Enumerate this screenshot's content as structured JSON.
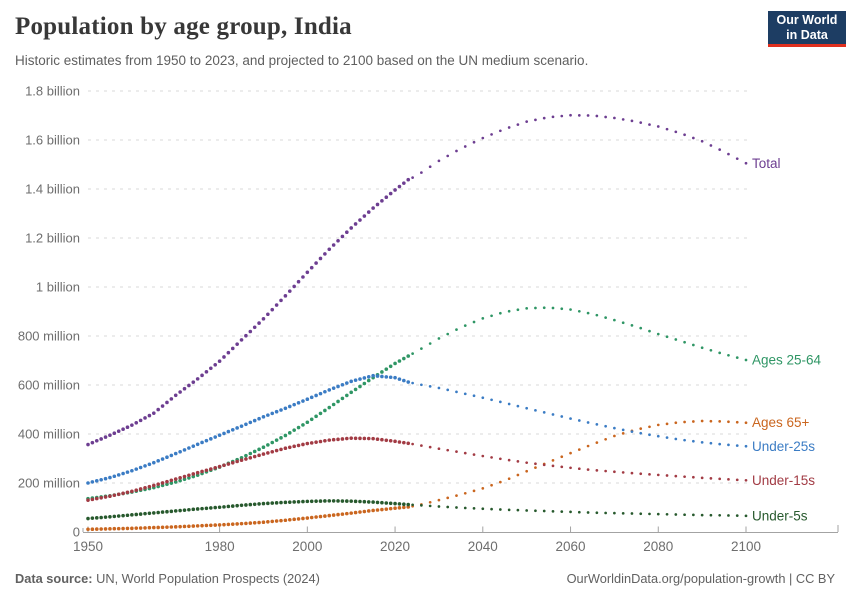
{
  "header": {
    "title": "Population by age group, India",
    "subtitle": "Historic estimates from 1950 to 2023, and projected to 2100 based on the UN medium scenario."
  },
  "logo": {
    "line1": "Our World",
    "line2": "in Data",
    "bg": "#1d3d63",
    "accent": "#e0301f"
  },
  "footer": {
    "source_label": "Data source:",
    "source_text": " UN, World Population Prospects (2024)",
    "right_text": "OurWorldinData.org/population-growth | CC BY"
  },
  "chart_data": {
    "type": "line",
    "title": "Population by age group, India",
    "xlabel": "",
    "ylabel": "",
    "unit": "million people",
    "xlim": [
      1950,
      2100
    ],
    "ylim": [
      0,
      1800
    ],
    "grid": true,
    "legend_position": "right-of-line-ends",
    "style": {
      "historic": "dense-dotted",
      "projection": "sparse-dotted"
    },
    "historic_end_year": 2023,
    "x_ticks": [
      1950,
      1980,
      2000,
      2020,
      2040,
      2060,
      2080,
      2100
    ],
    "y_ticks": [
      {
        "value": 0,
        "label": "0"
      },
      {
        "value": 200,
        "label": "200 million"
      },
      {
        "value": 400,
        "label": "400 million"
      },
      {
        "value": 600,
        "label": "600 million"
      },
      {
        "value": 800,
        "label": "800 million"
      },
      {
        "value": 1000,
        "label": "1 billion"
      },
      {
        "value": 1200,
        "label": "1.2 billion"
      },
      {
        "value": 1400,
        "label": "1.4 billion"
      },
      {
        "value": 1600,
        "label": "1.6 billion"
      },
      {
        "value": 1800,
        "label": "1.8 billion"
      }
    ],
    "years": [
      1950,
      1955,
      1960,
      1965,
      1970,
      1975,
      1980,
      1985,
      1990,
      1995,
      2000,
      2005,
      2010,
      2015,
      2020,
      2023,
      2025,
      2030,
      2035,
      2040,
      2045,
      2050,
      2055,
      2060,
      2065,
      2070,
      2075,
      2080,
      2085,
      2090,
      2095,
      2100
    ],
    "series": [
      {
        "name": "Total",
        "color": "#6d3e91",
        "values": [
          357,
          395,
          436,
          485,
          558,
          625,
          697,
          784,
          870,
          964,
          1060,
          1154,
          1241,
          1322,
          1396,
          1438,
          1455,
          1515,
          1565,
          1608,
          1645,
          1675,
          1693,
          1701,
          1700,
          1690,
          1675,
          1655,
          1628,
          1595,
          1552,
          1505
        ]
      },
      {
        "name": "Ages 25-64",
        "color": "#2f9665",
        "values": [
          136,
          148,
          163,
          181,
          204,
          232,
          265,
          303,
          346,
          394,
          448,
          508,
          570,
          630,
          688,
          718,
          738,
          790,
          835,
          872,
          898,
          913,
          916,
          908,
          890,
          865,
          838,
          808,
          780,
          752,
          726,
          702
        ]
      },
      {
        "name": "Ages 65+",
        "color": "#ca661f",
        "values": [
          11,
          13,
          15,
          18,
          21,
          25,
          29,
          34,
          40,
          48,
          57,
          67,
          77,
          88,
          97,
          102,
          108,
          130,
          153,
          178,
          210,
          248,
          285,
          322,
          358,
          392,
          418,
          437,
          448,
          453,
          451,
          446
        ]
      },
      {
        "name": "Under-25s",
        "color": "#3b7cc4",
        "values": [
          200,
          222,
          250,
          283,
          320,
          358,
          395,
          432,
          470,
          505,
          542,
          580,
          615,
          638,
          630,
          612,
          604,
          588,
          568,
          548,
          527,
          505,
          484,
          463,
          443,
          424,
          406,
          391,
          377,
          366,
          357,
          350
        ]
      },
      {
        "name": "Under-15s",
        "color": "#a23b44",
        "values": [
          130,
          146,
          166,
          190,
          216,
          242,
          267,
          293,
          318,
          342,
          361,
          375,
          383,
          381,
          370,
          362,
          356,
          340,
          325,
          310,
          296,
          283,
          272,
          262,
          253,
          246,
          239,
          233,
          227,
          221,
          216,
          211
        ]
      },
      {
        "name": "Under-5s",
        "color": "#27592d",
        "values": [
          55,
          62,
          70,
          78,
          86,
          94,
          101,
          109,
          116,
          121,
          125,
          127,
          126,
          122,
          116,
          112,
          110,
          104,
          99,
          95,
          91,
          88,
          85,
          82,
          79,
          77,
          75,
          73,
          71,
          69,
          68,
          66
        ]
      }
    ]
  }
}
